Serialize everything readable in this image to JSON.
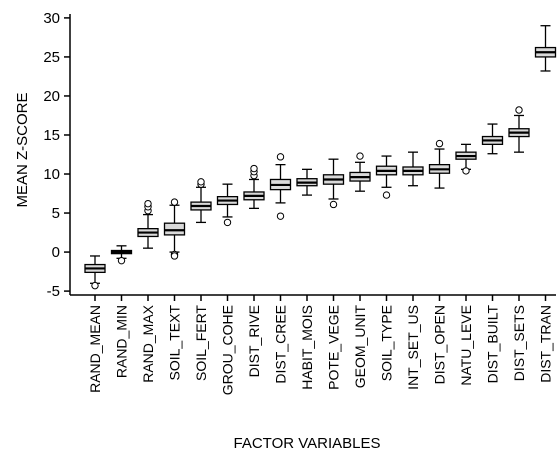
{
  "chart_data": {
    "type": "box",
    "xlabel": "FACTOR VARIABLES",
    "ylabel": "MEAN Z-SCORE",
    "ylim": [
      -5.5,
      30.5
    ],
    "yticks": [
      -5,
      0,
      5,
      10,
      15,
      20,
      25,
      30
    ],
    "grid": false,
    "categories": [
      "RAND_MEAN",
      "RAND_MIN",
      "RAND_MAX",
      "SOIL_TEXT",
      "SOIL_FERT",
      "GROU_COHE",
      "DIST_RIVE",
      "DIST_CREE",
      "HABIT_MOIS",
      "POTE_VEGE",
      "GEOM_UNIT",
      "SOIL_TYPE",
      "INT_SET_US",
      "DIST_OPEN",
      "NATU_LEVE",
      "DIST_BUILT",
      "DIST_SETS",
      "DIST_TRAN"
    ],
    "boxes": [
      {
        "whisker_low": -4.0,
        "q1": -2.6,
        "median": -2.1,
        "q3": -1.6,
        "whisker_high": -0.5,
        "outliers": [
          -4.3
        ]
      },
      {
        "whisker_low": -0.8,
        "q1": -0.2,
        "median": 0.0,
        "q3": 0.2,
        "whisker_high": 0.8,
        "outliers": [
          -1.1
        ]
      },
      {
        "whisker_low": 0.5,
        "q1": 2.0,
        "median": 2.5,
        "q3": 3.0,
        "whisker_high": 4.8,
        "outliers": [
          5.3,
          5.8,
          6.2
        ]
      },
      {
        "whisker_low": 0.0,
        "q1": 2.2,
        "median": 2.8,
        "q3": 3.7,
        "whisker_high": 6.0,
        "outliers": [
          -0.3,
          -0.5,
          6.4
        ]
      },
      {
        "whisker_low": 3.8,
        "q1": 5.4,
        "median": 5.9,
        "q3": 6.4,
        "whisker_high": 8.3,
        "outliers": [
          8.7,
          9.0
        ]
      },
      {
        "whisker_low": 4.5,
        "q1": 6.1,
        "median": 6.6,
        "q3": 7.1,
        "whisker_high": 8.7,
        "outliers": [
          3.8
        ]
      },
      {
        "whisker_low": 5.6,
        "q1": 6.7,
        "median": 7.2,
        "q3": 7.7,
        "whisker_high": 9.3,
        "outliers": [
          9.8,
          10.3,
          10.7
        ]
      },
      {
        "whisker_low": 6.3,
        "q1": 8.0,
        "median": 8.6,
        "q3": 9.3,
        "whisker_high": 11.2,
        "outliers": [
          4.6,
          12.2
        ]
      },
      {
        "whisker_low": 7.3,
        "q1": 8.5,
        "median": 8.9,
        "q3": 9.4,
        "whisker_high": 10.6,
        "outliers": []
      },
      {
        "whisker_low": 6.8,
        "q1": 8.7,
        "median": 9.3,
        "q3": 9.9,
        "whisker_high": 11.9,
        "outliers": [
          6.1
        ]
      },
      {
        "whisker_low": 7.8,
        "q1": 9.1,
        "median": 9.6,
        "q3": 10.2,
        "whisker_high": 11.5,
        "outliers": [
          12.3
        ]
      },
      {
        "whisker_low": 8.3,
        "q1": 9.9,
        "median": 10.4,
        "q3": 11.0,
        "whisker_high": 12.3,
        "outliers": [
          7.3
        ]
      },
      {
        "whisker_low": 8.5,
        "q1": 9.9,
        "median": 10.4,
        "q3": 10.9,
        "whisker_high": 12.8,
        "outliers": []
      },
      {
        "whisker_low": 8.2,
        "q1": 10.1,
        "median": 10.6,
        "q3": 11.2,
        "whisker_high": 13.2,
        "outliers": [
          13.9
        ]
      },
      {
        "whisker_low": 10.6,
        "q1": 11.9,
        "median": 12.3,
        "q3": 12.8,
        "whisker_high": 13.8,
        "outliers": [
          10.4
        ]
      },
      {
        "whisker_low": 12.6,
        "q1": 13.8,
        "median": 14.3,
        "q3": 14.8,
        "whisker_high": 16.4,
        "outliers": []
      },
      {
        "whisker_low": 12.8,
        "q1": 14.8,
        "median": 15.3,
        "q3": 15.8,
        "whisker_high": 17.5,
        "outliers": [
          18.2
        ]
      },
      {
        "whisker_low": 23.2,
        "q1": 25.0,
        "median": 25.6,
        "q3": 26.2,
        "whisker_high": 29.0,
        "outliers": []
      }
    ],
    "colors": {
      "box_fill": "#d9d9d9",
      "stroke": "#000000",
      "background": "#ffffff"
    }
  }
}
